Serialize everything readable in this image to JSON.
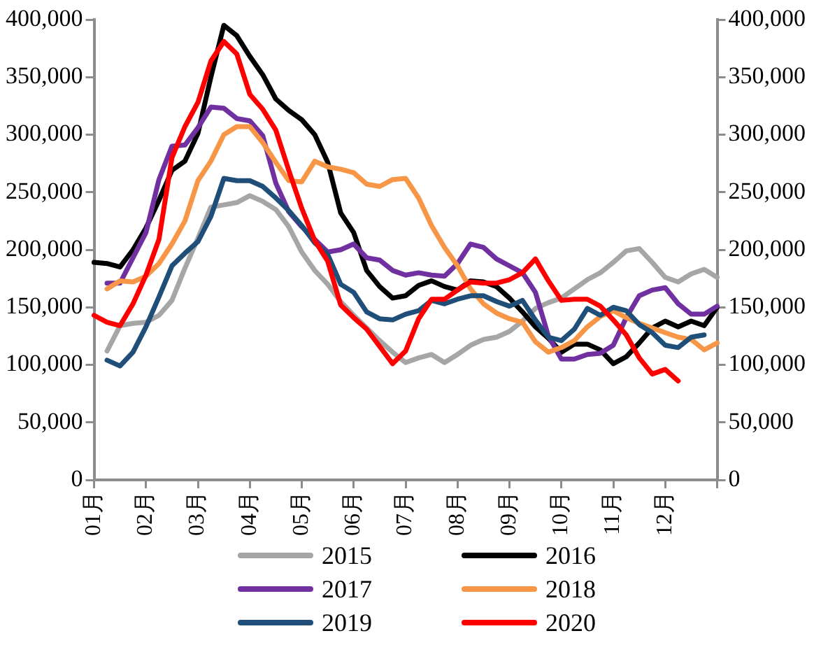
{
  "chart_data": {
    "type": "line",
    "categories": [
      "01月",
      null,
      null,
      null,
      "02月",
      null,
      null,
      null,
      "03月",
      null,
      null,
      null,
      "04月",
      null,
      null,
      null,
      "05月",
      null,
      null,
      null,
      "06月",
      null,
      null,
      null,
      "07月",
      null,
      null,
      null,
      "08月",
      null,
      null,
      null,
      "09月",
      null,
      null,
      null,
      "10月",
      null,
      null,
      null,
      "11月",
      null,
      null,
      null,
      "12月",
      null,
      null,
      null,
      null
    ],
    "ylim": [
      0,
      400000
    ],
    "yticks": [
      {
        "value": 0,
        "label": "0"
      },
      {
        "value": 50000,
        "label": "50,000"
      },
      {
        "value": 100000,
        "label": "100,000"
      },
      {
        "value": 150000,
        "label": "150,000"
      },
      {
        "value": 200000,
        "label": "200,000"
      },
      {
        "value": 250000,
        "label": "250,000"
      },
      {
        "value": 300000,
        "label": "300,000"
      },
      {
        "value": 350000,
        "label": "350,000"
      },
      {
        "value": 400000,
        "label": "400,000"
      }
    ],
    "y2lim": [
      0,
      400000
    ],
    "y2ticks": [
      {
        "value": 0,
        "label": "0"
      },
      {
        "value": 50000,
        "label": "50,000"
      },
      {
        "value": 100000,
        "label": "100,000"
      },
      {
        "value": 150000,
        "label": "150,000"
      },
      {
        "value": 200000,
        "label": "200,000"
      },
      {
        "value": 250000,
        "label": "250,000"
      },
      {
        "value": 300000,
        "label": "300,000"
      },
      {
        "value": 350000,
        "label": "350,000"
      },
      {
        "value": 400000,
        "label": "400,000"
      }
    ],
    "grid": false,
    "legend": "bottom",
    "marker": "none",
    "line_style": "solid",
    "series": [
      {
        "name": "2015",
        "color": "#a6a6a6",
        "values": [
          null,
          112000,
          134000,
          136000,
          137000,
          143000,
          156000,
          184000,
          210000,
          237000,
          239000,
          241000,
          247000,
          242000,
          235000,
          220000,
          198000,
          182000,
          170000,
          155000,
          143000,
          132000,
          121000,
          111000,
          102000,
          106000,
          109000,
          102000,
          109000,
          117000,
          122000,
          124000,
          129000,
          138000,
          149000,
          154000,
          158000,
          166000,
          174000,
          180000,
          189000,
          199000,
          201000,
          189000,
          176000,
          172000,
          179000,
          183000,
          176000
        ]
      },
      {
        "name": "2016",
        "color": "#000000",
        "values": [
          189000,
          188000,
          185000,
          200000,
          219000,
          243000,
          269000,
          277000,
          301000,
          350000,
          395000,
          386000,
          368000,
          352000,
          331000,
          321000,
          313000,
          300000,
          276000,
          232000,
          215000,
          182000,
          168000,
          158000,
          160000,
          169000,
          173000,
          168000,
          165000,
          173000,
          172000,
          168000,
          158000,
          146000,
          133000,
          123000,
          111000,
          118000,
          118000,
          113000,
          101000,
          107000,
          119000,
          132000,
          138000,
          133000,
          138000,
          134000,
          150000
        ]
      },
      {
        "name": "2017",
        "color": "#7030a0",
        "values": [
          null,
          171000,
          171000,
          193000,
          215000,
          261000,
          290000,
          291000,
          306000,
          324000,
          323000,
          314000,
          312000,
          299000,
          258000,
          233000,
          220000,
          209000,
          198000,
          200000,
          205000,
          193000,
          191000,
          182000,
          178000,
          180000,
          178000,
          177000,
          188000,
          205000,
          202000,
          192000,
          186000,
          180000,
          163000,
          125000,
          105000,
          105000,
          109000,
          110000,
          117000,
          141000,
          160000,
          165000,
          167000,
          153000,
          144000,
          144000,
          151000
        ]
      },
      {
        "name": "2018",
        "color": "#f79646",
        "values": [
          null,
          166000,
          173000,
          172000,
          177000,
          188000,
          205000,
          225000,
          260000,
          277000,
          300000,
          307000,
          307000,
          293000,
          276000,
          260000,
          259000,
          277000,
          272000,
          270000,
          267000,
          257000,
          255000,
          261000,
          262000,
          245000,
          221000,
          202000,
          186000,
          166000,
          153000,
          145000,
          140000,
          137000,
          120000,
          111000,
          115000,
          121000,
          133000,
          142000,
          147000,
          141000,
          136000,
          132000,
          128000,
          124000,
          122000,
          113000,
          119000
        ]
      },
      {
        "name": "2019",
        "color": "#1f4e79",
        "values": [
          null,
          104000,
          99000,
          111000,
          133000,
          159000,
          186000,
          197000,
          207000,
          229000,
          262000,
          260000,
          260000,
          255000,
          245000,
          234000,
          221000,
          206000,
          196000,
          170000,
          163000,
          146000,
          140000,
          139000,
          144000,
          147000,
          156000,
          153000,
          157000,
          160000,
          160000,
          155000,
          151000,
          156000,
          139000,
          124000,
          121000,
          131000,
          149000,
          143000,
          150000,
          147000,
          135000,
          128000,
          117000,
          115000,
          124000,
          126000,
          null
        ]
      },
      {
        "name": "2020",
        "color": "#ff0000",
        "values": [
          143000,
          137000,
          134000,
          153000,
          178000,
          209000,
          280000,
          307000,
          328000,
          364000,
          381000,
          370000,
          335000,
          322000,
          304000,
          269000,
          236000,
          208000,
          190000,
          152000,
          141000,
          131000,
          116000,
          101000,
          112000,
          140000,
          157000,
          157000,
          165000,
          172000,
          171000,
          171000,
          174000,
          180000,
          192000,
          173000,
          156000,
          157000,
          157000,
          151000,
          139000,
          126000,
          106000,
          92000,
          96000,
          86000,
          null,
          null,
          null
        ]
      }
    ]
  }
}
